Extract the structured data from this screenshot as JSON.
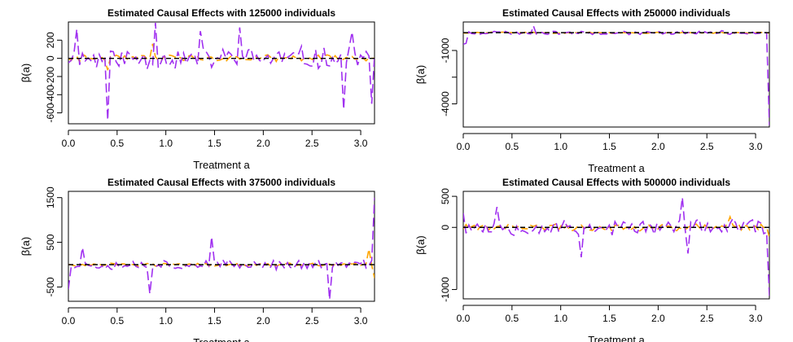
{
  "chart_data": [
    {
      "type": "line",
      "title": "Estimated Causal Effects with 125000 individuals",
      "xlabel": "Treatment a",
      "ylabel": "β(a)",
      "xlim": [
        0,
        3.1416
      ],
      "ylim": [
        -720,
        400
      ],
      "x_ticks": [
        "0.0",
        "0.5",
        "1.0",
        "1.5",
        "2.0",
        "2.5",
        "3.0"
      ],
      "x_tick_values": [
        0,
        0.5,
        1,
        1.5,
        2,
        2.5,
        3
      ],
      "y_ticks": [
        "-600",
        "-400",
        "-200",
        "0",
        "200"
      ],
      "y_tick_values": [
        -600,
        -400,
        -200,
        0,
        200
      ],
      "baseline": 0,
      "seed": 11,
      "purple": {
        "amp": 150,
        "spikes": [
          [
            0.09,
            320
          ],
          [
            0.4,
            -680
          ],
          [
            0.89,
            390
          ],
          [
            1.35,
            300
          ],
          [
            1.75,
            340
          ],
          [
            2.83,
            -560
          ],
          [
            2.92,
            290
          ],
          [
            3.11,
            -500
          ]
        ]
      },
      "orange": {
        "amp": 45,
        "spikes": [
          [
            0.86,
            160
          ],
          [
            0.4,
            -130
          ]
        ]
      },
      "grid": false,
      "legend": "none"
    },
    {
      "type": "line",
      "title": "Estimated Causal Effects with 250000 individuals",
      "xlabel": "Treatment a",
      "ylabel": "β(a)",
      "xlim": [
        0,
        3.1416
      ],
      "ylim": [
        -5300,
        600
      ],
      "x_ticks": [
        "0.0",
        "0.5",
        "1.0",
        "1.5",
        "2.0",
        "2.5",
        "3.0"
      ],
      "x_tick_values": [
        0,
        0.5,
        1,
        1.5,
        2,
        2.5,
        3
      ],
      "y_ticks": [
        "-4000",
        "-1000"
      ],
      "y_tick_values": [
        -4000,
        -1000
      ],
      "extra_y_tick_values": [
        -2500
      ],
      "baseline": 0,
      "seed": 23,
      "purple": {
        "amp": 120,
        "spikes": [
          [
            0.0,
            -650
          ],
          [
            0.02,
            -600
          ],
          [
            0.73,
            380
          ],
          [
            3.13,
            -5200
          ]
        ]
      },
      "orange": {
        "amp": 45,
        "spikes": []
      },
      "grid": false,
      "legend": "none"
    },
    {
      "type": "line",
      "title": "Estimated Causal Effects with 375000 individuals",
      "xlabel": "Treatment a",
      "ylabel": "β(a)",
      "xlim": [
        0,
        3.1416
      ],
      "ylim": [
        -820,
        1640
      ],
      "x_ticks": [
        "0.0",
        "0.5",
        "1.0",
        "1.5",
        "2.0",
        "2.5",
        "3.0"
      ],
      "x_tick_values": [
        0,
        0.5,
        1,
        1.5,
        2,
        2.5,
        3
      ],
      "y_ticks": [
        "-500",
        "500",
        "1500"
      ],
      "y_tick_values": [
        -500,
        500,
        1500
      ],
      "baseline": 0,
      "seed": 37,
      "purple": {
        "amp": 130,
        "spikes": [
          [
            0.0,
            -550
          ],
          [
            0.15,
            380
          ],
          [
            0.83,
            -650
          ],
          [
            1.48,
            620
          ],
          [
            2.67,
            -780
          ],
          [
            3.13,
            1500
          ]
        ]
      },
      "orange": {
        "amp": 45,
        "spikes": [
          [
            3.08,
            350
          ],
          [
            3.13,
            -300
          ]
        ]
      },
      "grid": false,
      "legend": "none"
    },
    {
      "type": "line",
      "title": "Estimated Causal Effects with 500000 individuals",
      "xlabel": "Treatment a",
      "ylabel": "β(a)",
      "xlim": [
        0,
        3.1416
      ],
      "ylim": [
        -1150,
        580
      ],
      "x_ticks": [
        "0.0",
        "0.5",
        "1.0",
        "1.5",
        "2.0",
        "2.5",
        "3.0"
      ],
      "x_tick_values": [
        0,
        0.5,
        1,
        1.5,
        2,
        2.5,
        3
      ],
      "y_ticks": [
        "-1000",
        "0",
        "500"
      ],
      "y_tick_values": [
        -1000,
        0,
        500
      ],
      "baseline": 0,
      "seed": 53,
      "purple": {
        "amp": 150,
        "spikes": [
          [
            0.0,
            230
          ],
          [
            0.36,
            330
          ],
          [
            1.21,
            -480
          ],
          [
            2.25,
            480
          ],
          [
            2.32,
            -420
          ],
          [
            3.13,
            -1100
          ]
        ]
      },
      "orange": {
        "amp": 70,
        "spikes": [
          [
            2.75,
            170
          ],
          [
            3.13,
            -160
          ]
        ]
      },
      "grid": false,
      "legend": "none"
    }
  ],
  "colors": {
    "purple": "#a030f0",
    "orange": "#ffa500",
    "baseline": "#000000"
  }
}
